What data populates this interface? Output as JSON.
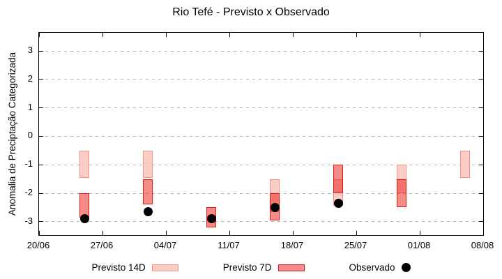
{
  "title": "Rio Tefé - Previsto x Observado",
  "ylabel": "Anomalia de Preciptação Categorizada",
  "legend": {
    "previsto_14d": "Previsto 14D",
    "previsto_7d": "Previsto 7D",
    "observado": "Observado"
  },
  "colors": {
    "previsto_14d_fill": "#fbcdc5",
    "previsto_14d_border": "#f19289",
    "previsto_7d_fill": "rgba(235,25,18,0.5)",
    "previsto_7d_border": "#e81812",
    "observado": "#000000",
    "grid": "#b3b3b3",
    "axis": "#000000"
  },
  "chart_data": {
    "type": "bar",
    "subtype": "range-bars-with-scatter",
    "title": "Rio Tefé - Previsto x Observado",
    "xlabel": "",
    "ylabel": "Anomalia de Preciptação Categorizada",
    "ylim": [
      -3.47,
      3.64
    ],
    "yticks": [
      3,
      2,
      1,
      0,
      -1,
      -2,
      -3
    ],
    "grid": "horizontal-dashed",
    "legend_position": "bottom",
    "x_axis_days": [
      0,
      49
    ],
    "xticks": [
      {
        "day": 0,
        "label": "20/06"
      },
      {
        "day": 7,
        "label": "27/06"
      },
      {
        "day": 14,
        "label": "04/07"
      },
      {
        "day": 21,
        "label": "11/07"
      },
      {
        "day": 28,
        "label": "18/07"
      },
      {
        "day": 35,
        "label": "25/07"
      },
      {
        "day": 42,
        "label": "01/08"
      },
      {
        "day": 49,
        "label": "08/08"
      }
    ],
    "series": [
      {
        "name": "Previsto 14D",
        "type": "range-bar",
        "points": [
          {
            "day": 5,
            "date": "25/06",
            "hi": -0.5,
            "lo": -1.45
          },
          {
            "day": 12,
            "date": "02/07",
            "hi": -0.5,
            "lo": -1.45
          },
          {
            "day": 26,
            "date": "16/07",
            "hi": -1.5,
            "lo": -2.65
          },
          {
            "day": 33,
            "date": "23/07",
            "hi": -1.5,
            "lo": -2.45
          },
          {
            "day": 40,
            "date": "30/07",
            "hi": -1.0,
            "lo": -2.0
          },
          {
            "day": 47,
            "date": "06/08",
            "hi": -0.5,
            "lo": -1.45
          }
        ]
      },
      {
        "name": "Previsto 7D",
        "type": "range-bar",
        "points": [
          {
            "day": 5,
            "date": "25/06",
            "hi": -2.0,
            "lo": -2.85
          },
          {
            "day": 12,
            "date": "02/07",
            "hi": -1.5,
            "lo": -2.4
          },
          {
            "day": 19,
            "date": "09/07",
            "hi": -2.5,
            "lo": -3.2
          },
          {
            "day": 26,
            "date": "16/07",
            "hi": -2.0,
            "lo": -2.95
          },
          {
            "day": 33,
            "date": "23/07",
            "hi": -1.0,
            "lo": -2.0
          },
          {
            "day": 40,
            "date": "30/07",
            "hi": -1.5,
            "lo": -2.5
          }
        ]
      },
      {
        "name": "Observado",
        "type": "scatter",
        "points": [
          {
            "day": 5,
            "date": "25/06",
            "value": -2.9
          },
          {
            "day": 12,
            "date": "02/07",
            "value": -2.65
          },
          {
            "day": 19,
            "date": "09/07",
            "value": -2.9
          },
          {
            "day": 26,
            "date": "16/07",
            "value": -2.5
          },
          {
            "day": 33,
            "date": "23/07",
            "value": -2.35
          }
        ]
      }
    ]
  }
}
